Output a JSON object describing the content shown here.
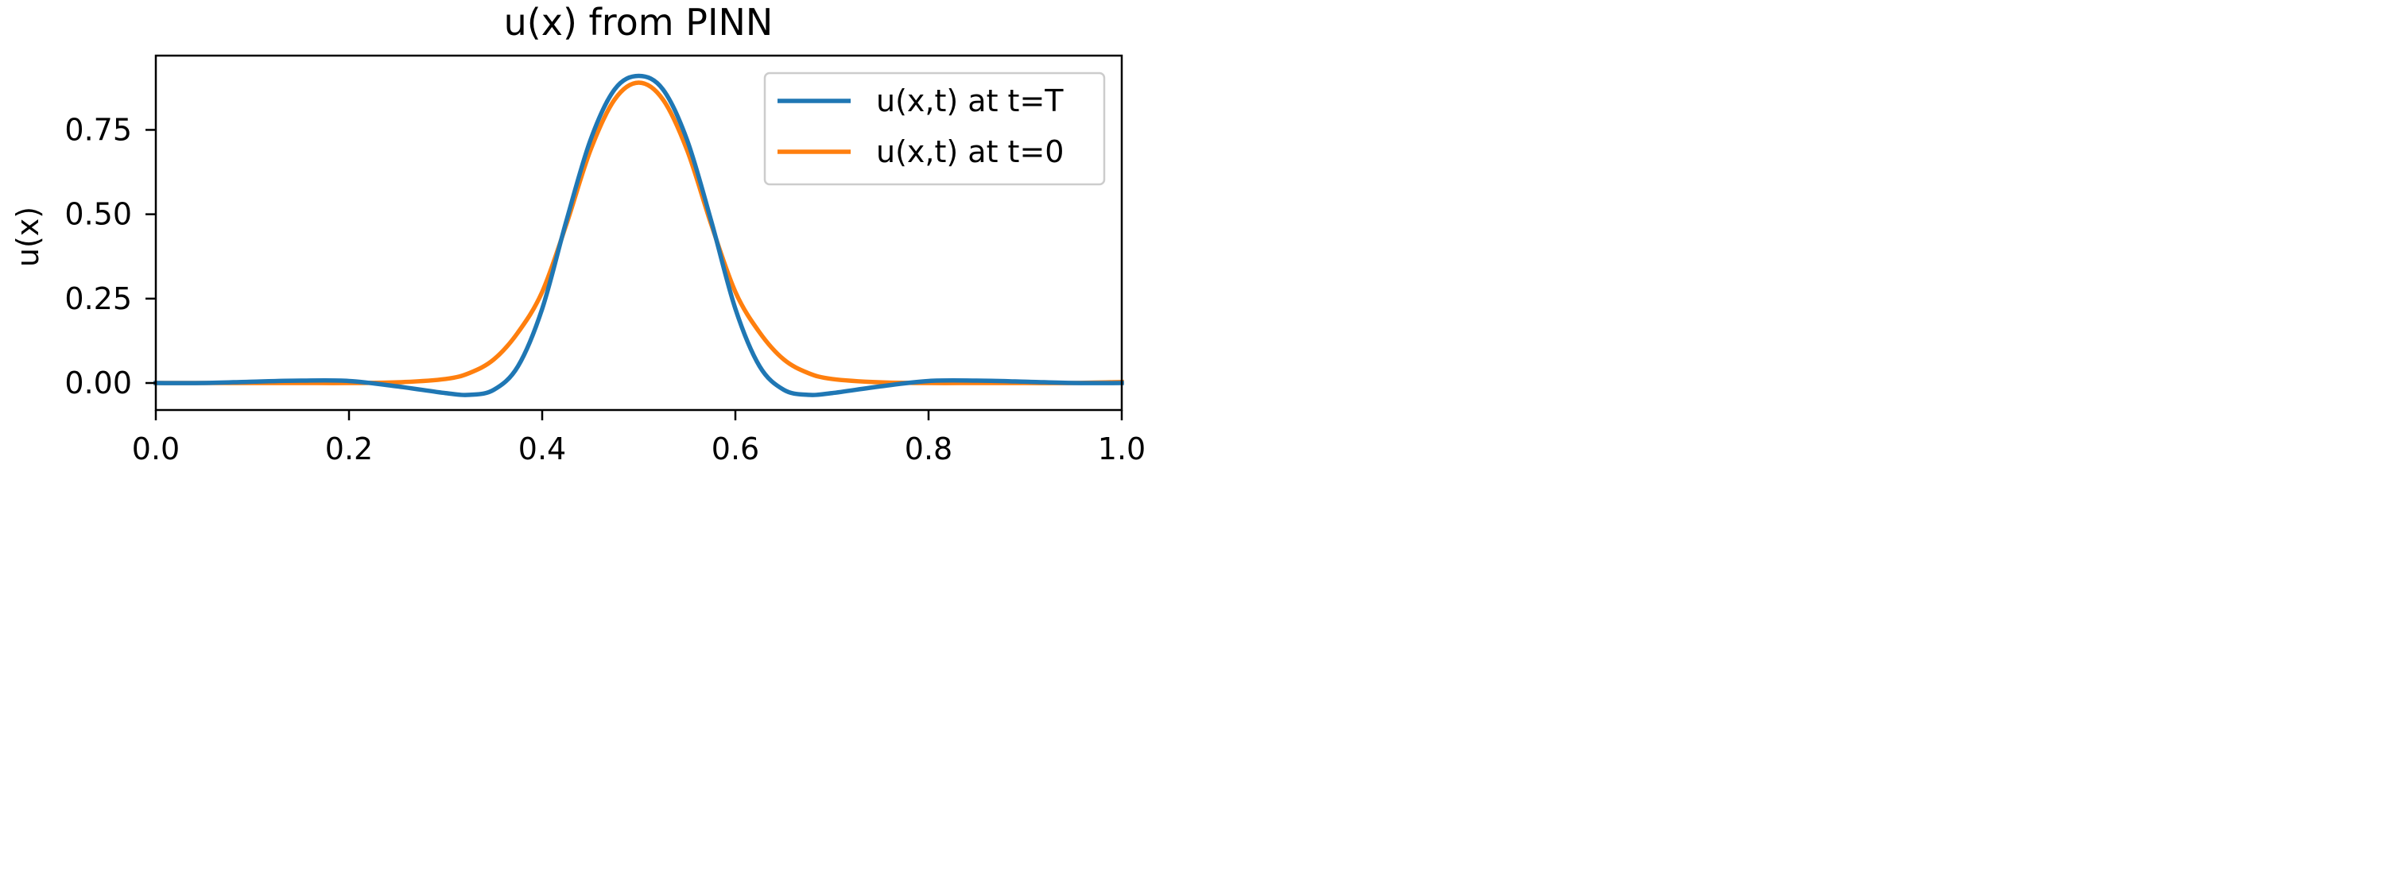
{
  "chart_data": {
    "type": "line",
    "title": "u(x) from PINN",
    "xlabel": "",
    "ylabel": "u(x)",
    "xlim": [
      0.0,
      1.0
    ],
    "ylim": [
      -0.08,
      0.97
    ],
    "x_ticks": [
      0.0,
      0.2,
      0.4,
      0.6,
      0.8,
      1.0
    ],
    "x_tick_labels": [
      "0.0",
      "0.2",
      "0.4",
      "0.6",
      "0.8",
      "1.0"
    ],
    "y_ticks": [
      0.0,
      0.25,
      0.5,
      0.75
    ],
    "y_tick_labels": [
      "0.00",
      "0.25",
      "0.50",
      "0.75"
    ],
    "grid": false,
    "legend_position": "top-right",
    "x": [
      0.0,
      0.05,
      0.1,
      0.15,
      0.2,
      0.25,
      0.3,
      0.325,
      0.35,
      0.375,
      0.4,
      0.425,
      0.45,
      0.475,
      0.5,
      0.525,
      0.55,
      0.575,
      0.6,
      0.625,
      0.65,
      0.675,
      0.7,
      0.75,
      0.8,
      0.85,
      0.9,
      0.95,
      1.0
    ],
    "series": [
      {
        "name": "u(x,t) at t=T",
        "color": "#1f77b4",
        "values": [
          0.0,
          0.0,
          0.004,
          0.007,
          0.006,
          -0.01,
          -0.03,
          -0.035,
          -0.02,
          0.05,
          0.22,
          0.48,
          0.72,
          0.87,
          0.91,
          0.87,
          0.72,
          0.48,
          0.22,
          0.05,
          -0.02,
          -0.035,
          -0.03,
          -0.01,
          0.006,
          0.007,
          0.004,
          0.0,
          0.0
        ]
      },
      {
        "name": "u(x,t) at t=0",
        "color": "#ff7f0e",
        "values": [
          0.0,
          0.0,
          0.0,
          0.0,
          0.0,
          0.002,
          0.012,
          0.03,
          0.07,
          0.15,
          0.27,
          0.47,
          0.69,
          0.84,
          0.89,
          0.84,
          0.69,
          0.47,
          0.27,
          0.15,
          0.07,
          0.03,
          0.012,
          0.002,
          0.0,
          0.0,
          0.0,
          0.0,
          0.003
        ]
      }
    ]
  }
}
